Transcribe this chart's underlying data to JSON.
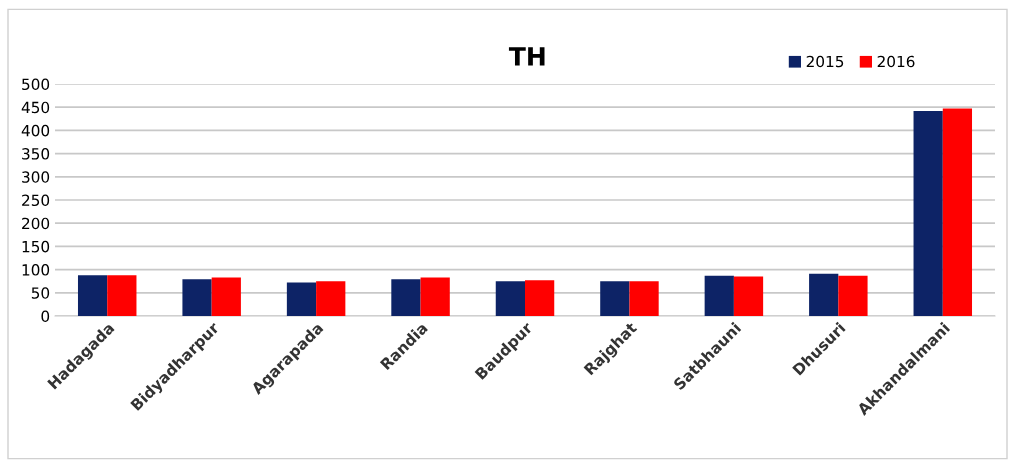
{
  "chart_data": {
    "type": "bar",
    "title": "TH",
    "categories": [
      "Hadagada",
      "Bidyadharpur",
      "Agarapada",
      "Randia",
      "Baudpur",
      "Rajghat",
      "Satbhauni",
      "Dhusuri",
      "Akhandalmani"
    ],
    "series": [
      {
        "name": "2015",
        "color": "#0d2366",
        "values": [
          88,
          79,
          72,
          79,
          75,
          75,
          87,
          91,
          442
        ]
      },
      {
        "name": "2016",
        "color": "#ff0000",
        "values": [
          88,
          83,
          75,
          83,
          77,
          75,
          85,
          87,
          447
        ]
      }
    ],
    "ylim": [
      0,
      500
    ],
    "yticks": [
      0,
      50,
      100,
      150,
      200,
      250,
      300,
      350,
      400,
      450,
      500
    ],
    "grid": "y",
    "legend": "top right"
  }
}
